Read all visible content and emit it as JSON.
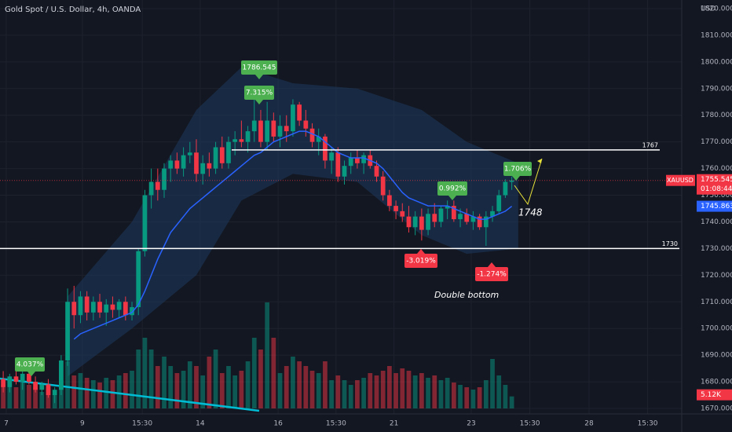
{
  "chart_data": {
    "type": "candlestick",
    "title": "Gold Spot / U.S. Dollar, 4h, OANDA",
    "currency": "USD",
    "symbol": "XAUUSD",
    "countdown": "01:08:44",
    "last_price": {
      "value": 1755.545,
      "label": "1755.545"
    },
    "ema_last": {
      "value": 1745.863,
      "label": "1745.863"
    },
    "last_volume": {
      "value": 5.12,
      "label": "5.12K"
    },
    "colors": {
      "up": "#089981",
      "down": "#f23645",
      "ema": "#2962ff",
      "band": "#1e3a5f"
    },
    "open": [
      1681,
      1678,
      1682,
      1680,
      1683,
      1680,
      1677,
      1679,
      1675,
      1677,
      1688,
      1710,
      1705,
      1712,
      1706,
      1710,
      1706,
      1709,
      1707,
      1710,
      1705,
      1708,
      1729,
      1750,
      1755,
      1752,
      1760,
      1763,
      1760,
      1765,
      1766,
      1758,
      1762,
      1760,
      1768,
      1762,
      1770,
      1771,
      1770,
      1774,
      1778,
      1770,
      1778,
      1772,
      1776,
      1774,
      1784,
      1778,
      1775,
      1770,
      1772,
      1763,
      1766,
      1757,
      1761,
      1764,
      1762,
      1765,
      1761,
      1757,
      1750,
      1746,
      1744,
      1742,
      1738,
      1742,
      1737,
      1743,
      1740,
      1745,
      1746,
      1741,
      1743,
      1740,
      1742,
      1738,
      1742,
      1744,
      1750,
      1755
    ],
    "high": [
      1684,
      1683,
      1686,
      1684,
      1687,
      1682,
      1680,
      1681,
      1678,
      1690,
      1715,
      1716,
      1714,
      1714,
      1712,
      1713,
      1711,
      1712,
      1711,
      1712,
      1710,
      1730,
      1752,
      1760,
      1760,
      1762,
      1765,
      1766,
      1768,
      1770,
      1771,
      1765,
      1766,
      1770,
      1772,
      1772,
      1774,
      1778,
      1776,
      1786.545,
      1782,
      1785,
      1781,
      1780,
      1780,
      1786,
      1785,
      1782,
      1777,
      1775,
      1773,
      1768,
      1768,
      1763,
      1766,
      1767,
      1766,
      1767,
      1763,
      1759,
      1752,
      1748,
      1747,
      1746,
      1744,
      1745,
      1745,
      1747,
      1746,
      1748,
      1748,
      1745,
      1745,
      1744,
      1743,
      1744,
      1746,
      1752,
      1756,
      1757
    ],
    "low": [
      1676,
      1676,
      1679,
      1677,
      1679,
      1676,
      1675,
      1674,
      1672,
      1675,
      1686,
      1700,
      1702,
      1703,
      1703,
      1704,
      1701,
      1704,
      1704,
      1703,
      1703,
      1705,
      1727,
      1745,
      1748,
      1749,
      1755,
      1758,
      1757,
      1762,
      1755,
      1754,
      1757,
      1758,
      1760,
      1760,
      1765,
      1768,
      1766,
      1770,
      1768,
      1767,
      1770,
      1768,
      1770,
      1772,
      1776,
      1772,
      1768,
      1765,
      1760,
      1758,
      1755,
      1754,
      1758,
      1760,
      1758,
      1760,
      1755,
      1748,
      1744,
      1741,
      1740,
      1736,
      1735,
      1733,
      1735,
      1738,
      1738,
      1741,
      1740,
      1738,
      1739,
      1737,
      1737,
      1731,
      1740,
      1743,
      1749,
      1752
    ],
    "close": [
      1678,
      1682,
      1680,
      1683,
      1680,
      1677,
      1679,
      1675,
      1677,
      1688,
      1710,
      1705,
      1712,
      1706,
      1710,
      1706,
      1709,
      1707,
      1710,
      1705,
      1708,
      1729,
      1750,
      1755,
      1752,
      1760,
      1763,
      1760,
      1765,
      1766,
      1758,
      1762,
      1760,
      1768,
      1762,
      1770,
      1771,
      1770,
      1774,
      1778,
      1770,
      1778,
      1772,
      1776,
      1774,
      1784,
      1778,
      1775,
      1770,
      1772,
      1763,
      1766,
      1757,
      1761,
      1764,
      1762,
      1765,
      1761,
      1757,
      1750,
      1746,
      1744,
      1742,
      1738,
      1742,
      1737,
      1743,
      1740,
      1745,
      1746,
      1741,
      1743,
      1740,
      1742,
      1738,
      1742,
      1744,
      1750,
      1755,
      1755.545
    ],
    "volume": [
      10,
      12,
      9,
      11,
      10,
      9,
      7,
      8,
      6,
      12,
      20,
      14,
      15,
      13,
      12,
      11,
      13,
      12,
      14,
      15,
      16,
      25,
      30,
      25,
      18,
      22,
      18,
      15,
      16,
      20,
      18,
      14,
      22,
      25,
      15,
      18,
      14,
      16,
      20,
      30,
      25,
      45,
      30,
      15,
      18,
      22,
      20,
      18,
      16,
      15,
      20,
      12,
      14,
      12,
      10,
      12,
      13,
      15,
      14,
      16,
      18,
      15,
      17,
      16,
      14,
      15,
      13,
      14,
      12,
      13,
      11,
      10,
      9,
      8,
      9,
      12,
      21,
      14,
      10,
      5.12
    ],
    "ema": [
      null,
      null,
      null,
      null,
      null,
      null,
      null,
      null,
      null,
      null,
      null,
      1696,
      1698,
      1699,
      1700,
      1701,
      1702,
      1703,
      1704,
      1705,
      1706,
      1709,
      1714,
      1720,
      1726,
      1731,
      1736,
      1739,
      1742,
      1745,
      1747,
      1749,
      1751,
      1753,
      1755,
      1757,
      1759,
      1761,
      1763,
      1765,
      1766,
      1768,
      1770,
      1771,
      1772,
      1773,
      1774,
      1774,
      1773,
      1772,
      1770,
      1768,
      1766,
      1765,
      1764,
      1764,
      1764,
      1763,
      1762,
      1760,
      1757,
      1754,
      1751,
      1749,
      1748,
      1747,
      1746,
      1746,
      1746,
      1746,
      1745,
      1744,
      1743,
      1742,
      1741,
      1741,
      1742,
      1743,
      1744,
      1745.863
    ],
    "band": {
      "x": [
        10,
        20,
        30,
        37,
        45,
        55,
        65,
        72,
        80
      ],
      "upper": [
        1712,
        1740,
        1782,
        1798,
        1792,
        1790,
        1782,
        1770,
        1762
      ],
      "lower": [
        1682,
        1700,
        1720,
        1748,
        1758,
        1755,
        1735,
        1728,
        1730
      ]
    },
    "levels": [
      {
        "value": 1767,
        "label": "1767"
      },
      {
        "value": 1730,
        "label": "1730"
      }
    ],
    "annotations": [
      "1786.545",
      "7.315%",
      "4.037%",
      "0.992%",
      "1.706%",
      "-3.019%",
      "-1.274%",
      "1748",
      "Double bottom"
    ],
    "xlim": [
      -0.5,
      105.4
    ],
    "xticks": [
      {
        "value": 0.48,
        "label": "7"
      },
      {
        "value": 12.3,
        "label": "9"
      },
      {
        "value": 21.6,
        "label": "15:30"
      },
      {
        "value": 30.6,
        "label": "14"
      },
      {
        "value": 42.7,
        "label": "16"
      },
      {
        "value": 51.7,
        "label": "15:30"
      },
      {
        "value": 60.7,
        "label": "21"
      },
      {
        "value": 72.7,
        "label": "23"
      },
      {
        "value": 81.8,
        "label": "15:30"
      },
      {
        "value": 91,
        "label": "28"
      },
      {
        "value": 100.1,
        "label": "15:30"
      }
    ],
    "ylim": [
      1670,
      1820
    ],
    "yticks": [
      {
        "value": 1670,
        "label": "1670.000"
      },
      {
        "value": 1680,
        "label": "1680.000"
      },
      {
        "value": 1690,
        "label": "1690.000"
      },
      {
        "value": 1700,
        "label": "1700.000"
      },
      {
        "value": 1710,
        "label": "1710.000"
      },
      {
        "value": 1720,
        "label": "1720.000"
      },
      {
        "value": 1730,
        "label": "1730.000"
      },
      {
        "value": 1740,
        "label": "1740.000"
      },
      {
        "value": 1750,
        "label": "1750.000"
      },
      {
        "value": 1760,
        "label": "1760.000"
      },
      {
        "value": 1770,
        "label": "1770.000"
      },
      {
        "value": 1780,
        "label": "1780.000"
      },
      {
        "value": 1790,
        "label": "1790.000"
      },
      {
        "value": 1800,
        "label": "1800.000"
      },
      {
        "value": 1810,
        "label": "1810.000"
      },
      {
        "value": 1820,
        "label": "1820.000"
      }
    ],
    "grid": true
  }
}
